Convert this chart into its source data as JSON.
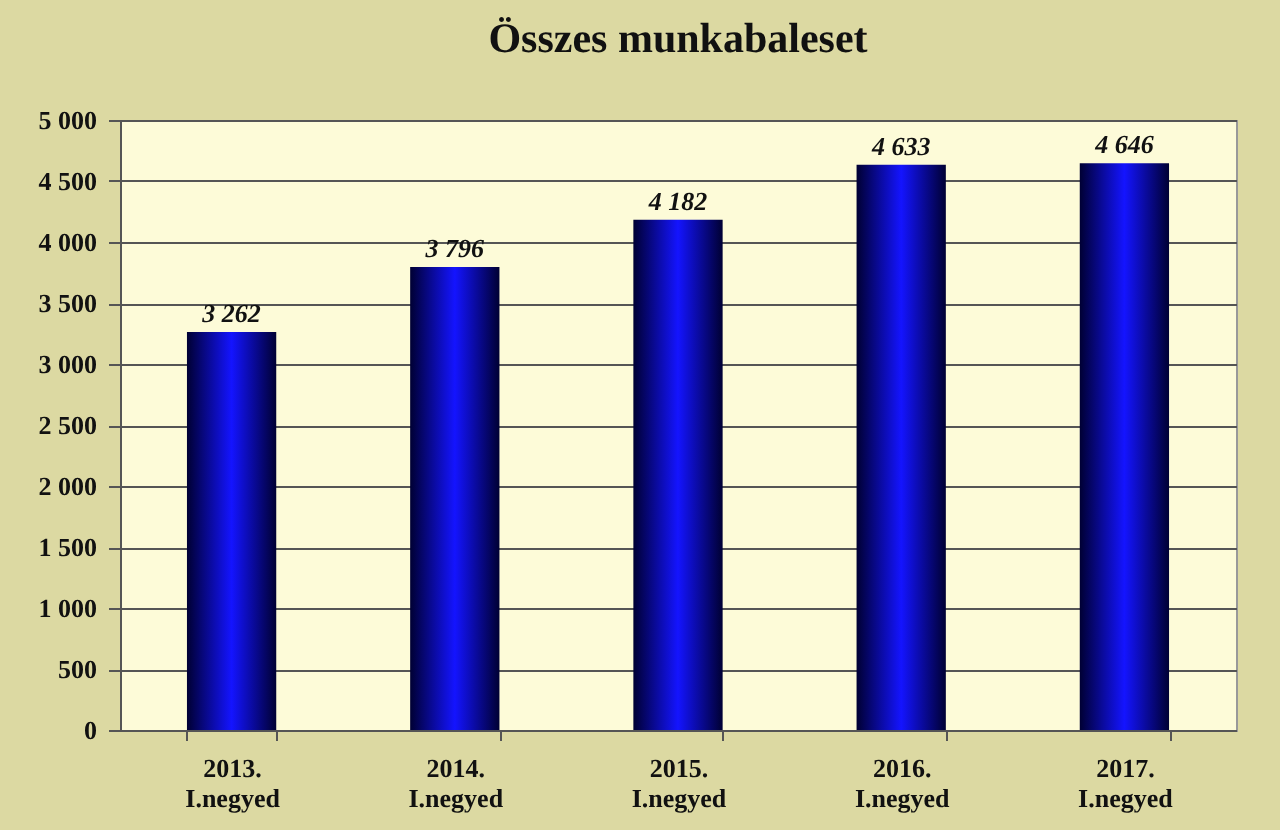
{
  "chart_data": {
    "type": "bar",
    "title": "Összes munkabaleset",
    "categories": [
      "2013.\nI.negyed",
      "2014.\nI.negyed",
      "2015.\nI.negyed",
      "2016.\nI.negyed",
      "2017.\nI.negyed"
    ],
    "values": [
      3262,
      3796,
      4182,
      4633,
      4646
    ],
    "value_labels": [
      "3 262",
      "3 796",
      "4 182",
      "4 633",
      "4 646"
    ],
    "color": "#1414ff",
    "ylim": [
      0,
      5000
    ],
    "yticks": [
      0,
      500,
      {
        "value": 1000,
        "label": "1 000"
      },
      {
        "value": 1500,
        "label": "1 500"
      },
      {
        "value": 2000,
        "label": "2 000"
      },
      {
        "value": 2500,
        "label": "2 500"
      },
      {
        "value": 3000,
        "label": "3 000"
      },
      {
        "value": 3500,
        "label": "3 500"
      },
      {
        "value": 4000,
        "label": "4 000"
      },
      {
        "value": 4500,
        "label": "4 500"
      },
      {
        "value": 5000,
        "label": "5 000"
      }
    ],
    "grid": "y"
  }
}
